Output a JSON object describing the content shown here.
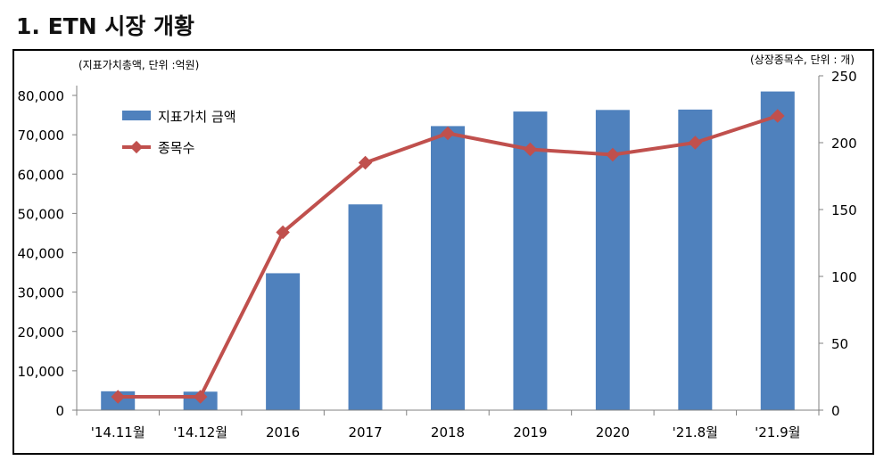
{
  "page": {
    "title": "1. ETN 시장 개황"
  },
  "chart_data": {
    "type": "bar",
    "title": "",
    "categories": [
      "'14.11월",
      "'14.12월",
      "2016",
      "2017",
      "2018",
      "2019",
      "2020",
      "'21.8월",
      "'21.9월"
    ],
    "series": [
      {
        "name": "지표가치 금액",
        "type": "bar",
        "axis": "left",
        "color": "#4F81BD",
        "values": [
          4800,
          4700,
          34800,
          52300,
          72200,
          75900,
          76300,
          76400,
          81000
        ]
      },
      {
        "name": "종목수",
        "type": "line",
        "axis": "right",
        "color": "#C0504D",
        "values": [
          10,
          10,
          133,
          185,
          207,
          195,
          191,
          200,
          220
        ]
      }
    ],
    "left_axis": {
      "label": "(지표가치총액, 단위 :억원)",
      "min": 0,
      "max": 80000,
      "ticks": [
        0,
        10000,
        20000,
        30000,
        40000,
        50000,
        60000,
        70000,
        80000
      ],
      "tick_labels": [
        "0",
        "10,000",
        "20,000",
        "30,000",
        "40,000",
        "50,000",
        "60,000",
        "70,000",
        "80,000"
      ]
    },
    "right_axis": {
      "label": "(상장종목수, 단위 : 개)",
      "min": 0,
      "max": 250,
      "ticks": [
        0,
        50,
        100,
        150,
        200,
        250
      ],
      "tick_labels": [
        "0",
        "50",
        "100",
        "150",
        "200",
        "250"
      ]
    },
    "grid": false,
    "legend": {
      "placement": "top-left"
    }
  }
}
